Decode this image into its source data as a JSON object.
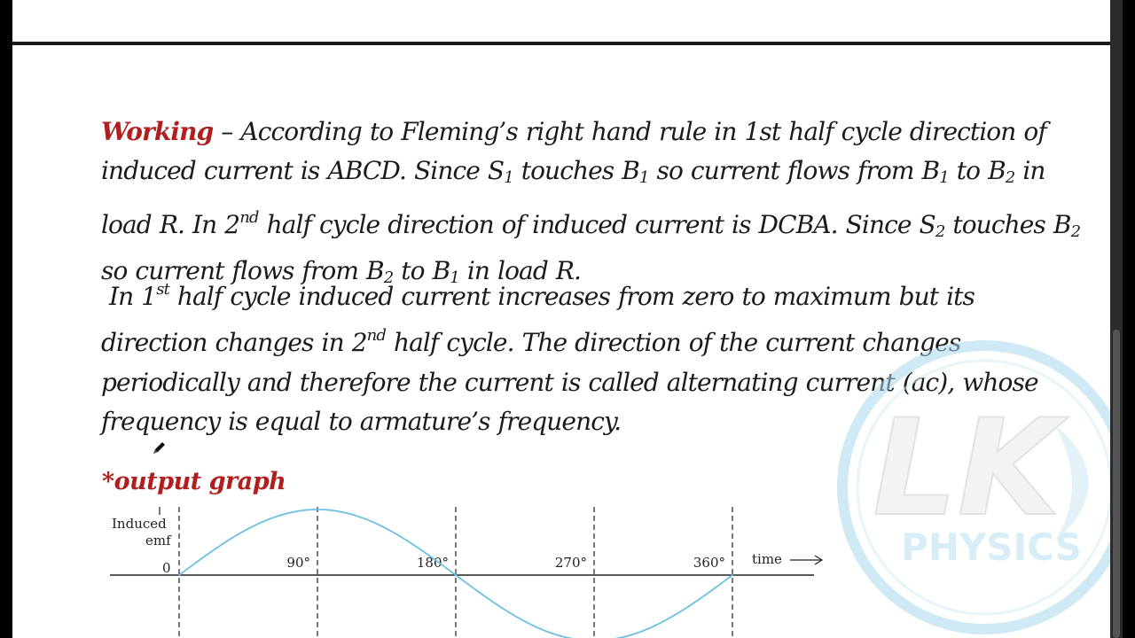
{
  "paragraph1": {
    "heading": "Working",
    "dash": " – ",
    "l1": "According to Fleming’s right hand rule in 1st half cycle direction of",
    "l2a": "induced current is ABCD. Since S",
    "l2b": " touches B",
    "l2c": " so current flows from B",
    "l2d": " to B",
    "l2e": " in",
    "l3a": "load R. In 2",
    "l3b": " half cycle direction of induced current is DCBA. Since S",
    "l3c": " touches B",
    "l4a": "so current flows from B",
    "l4b": " to B",
    "l4c": " in load R.",
    "one": "1",
    "two": "2",
    "nd": "nd"
  },
  "paragraph2": {
    "l1a": "In 1",
    "st": "st",
    "l1b": " half cycle induced current increases from zero to maximum but its",
    "l2a": "direction changes in 2",
    "nd": "nd",
    "l2b": " half cycle. The direction of the current changes",
    "l3": "periodically and therefore the current is called alternating current (ac), whose",
    "l4": "frequency is equal to armature’s frequency."
  },
  "output_heading": "*output graph",
  "watermark": {
    "line1": "LK",
    "line2": "PHYSICS"
  },
  "chart_data": {
    "type": "line",
    "ylabel_line1": "Induced",
    "ylabel_line2": "emf",
    "y_zero_label": "0",
    "xlabel": "time",
    "x_tick_labels": [
      "90°",
      "180°",
      "270°",
      "360°"
    ],
    "x_ticks_deg": [
      90,
      180,
      270,
      360
    ],
    "series": [
      {
        "x": [
          0,
          45,
          90,
          135,
          180,
          225,
          270,
          315,
          360
        ],
        "y": [
          0,
          0.707,
          1,
          0.707,
          0,
          -0.707,
          -1,
          -0.707,
          0
        ]
      }
    ],
    "xlim": [
      0,
      360
    ],
    "colors": {
      "curve": "#6bbfe0",
      "axis": "#222222"
    }
  }
}
